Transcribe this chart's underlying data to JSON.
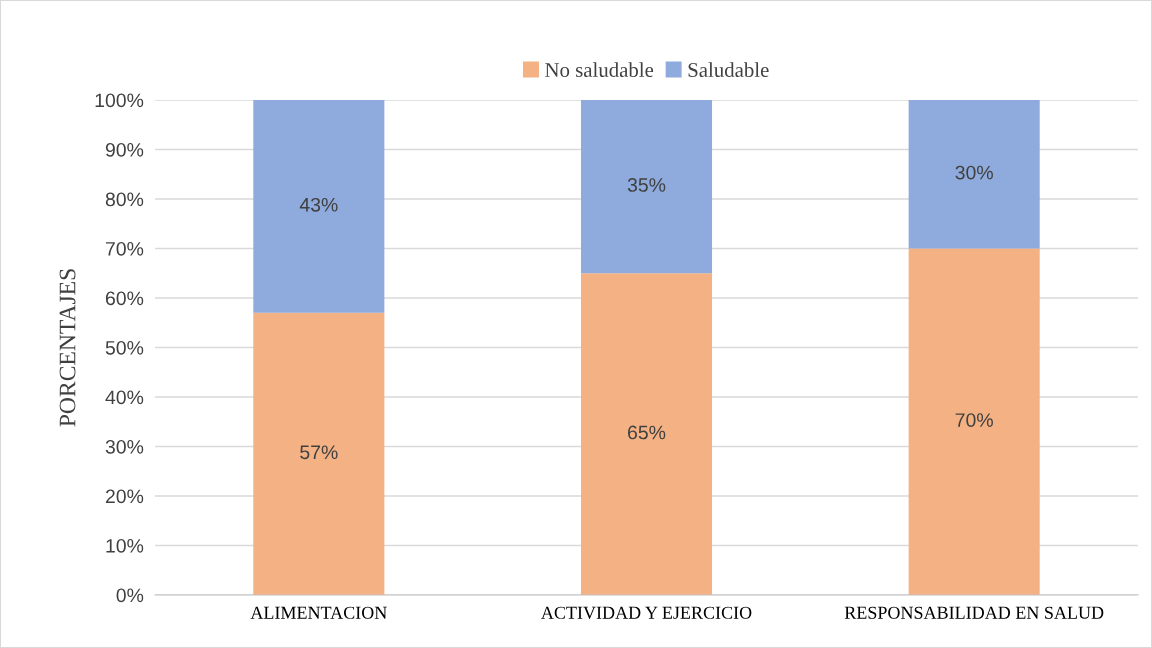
{
  "chart_data": {
    "type": "bar",
    "stacked": true,
    "ylabel": "PORCENTAJES",
    "categories": [
      "ALIMENTACION",
      "ACTIVIDAD Y EJERCICIO",
      "RESPONSABILIDAD EN SALUD"
    ],
    "series": [
      {
        "name": "No saludable",
        "color": "#f4b183",
        "values": [
          57,
          65,
          70
        ],
        "value_labels": [
          "57%",
          "65%",
          "70%"
        ]
      },
      {
        "name": "Saludable",
        "color": "#8faadc",
        "values": [
          43,
          35,
          30
        ],
        "value_labels": [
          "43%",
          "35%",
          "30%"
        ]
      }
    ],
    "ylim": [
      0,
      100
    ],
    "yticks": [
      {
        "value": 0,
        "label": "0%"
      },
      {
        "value": 10,
        "label": "10%"
      },
      {
        "value": 20,
        "label": "20%"
      },
      {
        "value": 30,
        "label": "30%"
      },
      {
        "value": 40,
        "label": "40%"
      },
      {
        "value": 50,
        "label": "50%"
      },
      {
        "value": 60,
        "label": "60%"
      },
      {
        "value": 70,
        "label": "70%"
      },
      {
        "value": 80,
        "label": "80%"
      },
      {
        "value": 90,
        "label": "90%"
      },
      {
        "value": 100,
        "label": "100%"
      }
    ],
    "grid": "y",
    "legend": "top"
  }
}
